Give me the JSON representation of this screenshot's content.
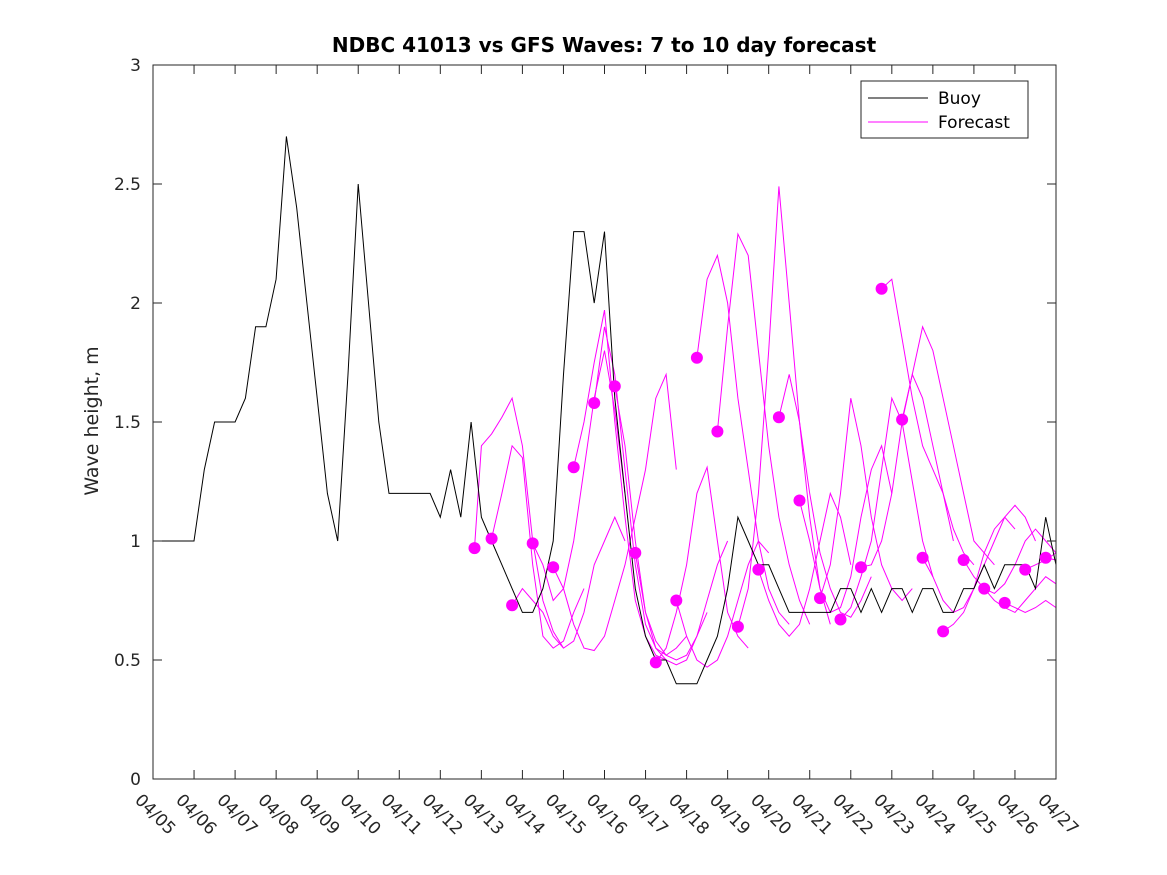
{
  "chart_data": {
    "type": "line",
    "title": "NDBC 41013 vs GFS Waves: 7 to 10 day forecast",
    "xlabel": "",
    "ylabel": "Wave height, m",
    "xlim": [
      "04/05",
      "04/27"
    ],
    "ylim": [
      0,
      3
    ],
    "grid": false,
    "legend_position": "top-right",
    "x_tick_labels": [
      "04/05",
      "04/06",
      "04/07",
      "04/08",
      "04/09",
      "04/10",
      "04/11",
      "04/12",
      "04/13",
      "04/14",
      "04/15",
      "04/16",
      "04/17",
      "04/18",
      "04/19",
      "04/20",
      "04/21",
      "04/22",
      "04/23",
      "04/24",
      "04/25",
      "04/26",
      "04/27"
    ],
    "y_ticks": [
      0,
      0.5,
      1,
      1.5,
      2,
      2.5,
      3
    ],
    "y_tick_labels": [
      "0",
      "0.5",
      "1",
      "1.5",
      "2",
      "2.5",
      "3"
    ],
    "colors": {
      "buoy": "#000000",
      "forecast": "#ff00ff"
    },
    "series": [
      {
        "name": "Buoy",
        "color": "#000000",
        "x": [
          "04/05 00:00",
          "04/05 06:00",
          "04/05 12:00",
          "04/05 18:00",
          "04/06 00:00",
          "04/06 06:00",
          "04/06 12:00",
          "04/06 18:00",
          "04/07 00:00",
          "04/07 06:00",
          "04/07 12:00",
          "04/07 18:00",
          "04/08 00:00",
          "04/08 06:00",
          "04/08 12:00",
          "04/08 18:00",
          "04/09 00:00",
          "04/09 06:00",
          "04/09 12:00",
          "04/09 18:00",
          "04/10 00:00",
          "04/10 06:00",
          "04/10 12:00",
          "04/10 18:00",
          "04/11 00:00",
          "04/11 06:00",
          "04/11 12:00",
          "04/11 18:00",
          "04/12 00:00",
          "04/12 06:00",
          "04/12 12:00",
          "04/12 18:00",
          "04/13 00:00",
          "04/13 06:00",
          "04/13 12:00",
          "04/13 18:00",
          "04/14 00:00",
          "04/14 06:00",
          "04/14 12:00",
          "04/14 18:00",
          "04/15 00:00",
          "04/15 06:00",
          "04/15 12:00",
          "04/15 18:00",
          "04/16 00:00",
          "04/16 06:00",
          "04/16 12:00",
          "04/16 18:00",
          "04/17 00:00",
          "04/17 06:00",
          "04/17 12:00",
          "04/17 18:00",
          "04/18 00:00",
          "04/18 06:00",
          "04/18 12:00",
          "04/18 18:00",
          "04/19 00:00",
          "04/19 06:00",
          "04/19 12:00",
          "04/19 18:00",
          "04/20 00:00",
          "04/20 06:00",
          "04/20 12:00",
          "04/20 18:00",
          "04/21 00:00",
          "04/21 06:00",
          "04/21 12:00",
          "04/21 18:00",
          "04/22 00:00",
          "04/22 06:00",
          "04/22 12:00",
          "04/22 18:00",
          "04/23 00:00",
          "04/23 06:00",
          "04/23 12:00",
          "04/23 18:00",
          "04/24 00:00",
          "04/24 06:00",
          "04/24 12:00",
          "04/24 18:00",
          "04/25 00:00",
          "04/25 06:00",
          "04/25 12:00",
          "04/25 18:00",
          "04/26 00:00",
          "04/26 06:00",
          "04/26 12:00",
          "04/26 18:00",
          "04/27 00:00"
        ],
        "y": [
          1.0,
          1.0,
          1.0,
          1.0,
          1.0,
          1.3,
          1.5,
          1.5,
          1.5,
          1.6,
          1.9,
          1.9,
          2.1,
          2.7,
          2.4,
          2.0,
          1.6,
          1.2,
          1.0,
          1.7,
          2.5,
          2.0,
          1.5,
          1.2,
          1.2,
          1.2,
          1.2,
          1.2,
          1.1,
          1.3,
          1.1,
          1.5,
          1.1,
          1.0,
          0.9,
          0.8,
          0.7,
          0.7,
          0.8,
          1.0,
          1.7,
          2.3,
          2.3,
          2.0,
          2.3,
          1.6,
          1.2,
          0.8,
          0.6,
          0.5,
          0.5,
          0.4,
          0.4,
          0.4,
          0.5,
          0.6,
          0.8,
          1.1,
          1.0,
          0.9,
          0.9,
          0.8,
          0.7,
          0.7,
          0.7,
          0.7,
          0.7,
          0.8,
          0.8,
          0.7,
          0.8,
          0.7,
          0.8,
          0.8,
          0.7,
          0.8,
          0.8,
          0.7,
          0.7,
          0.8,
          0.8,
          0.9,
          0.8,
          0.9,
          0.9,
          0.9,
          0.8,
          1.1,
          0.9
        ]
      }
    ],
    "forecasts": [
      {
        "name": "Forecast",
        "x": [
          "04/12 20:00",
          "04/13 00:00",
          "04/13 06:00",
          "04/13 12:00",
          "04/13 18:00",
          "04/14 00:00",
          "04/14 06:00",
          "04/14 12:00",
          "04/14 18:00",
          "04/15 00:00"
        ],
        "y": [
          0.97,
          1.4,
          1.45,
          1.52,
          1.6,
          1.4,
          1.0,
          0.75,
          0.62,
          0.55
        ]
      },
      {
        "name": "Forecast",
        "x": [
          "04/13 06:00",
          "04/13 12:00",
          "04/13 18:00",
          "04/14 00:00",
          "04/14 06:00",
          "04/14 12:00",
          "04/14 18:00",
          "04/15 00:00",
          "04/15 06:00",
          "04/15 12:00"
        ],
        "y": [
          1.01,
          1.2,
          1.4,
          1.35,
          0.9,
          0.6,
          0.55,
          0.58,
          0.7,
          0.8
        ]
      },
      {
        "name": "Forecast",
        "x": [
          "04/13 18:00",
          "04/14 00:00",
          "04/14 06:00",
          "04/14 12:00",
          "04/14 18:00",
          "04/15 00:00",
          "04/15 06:00",
          "04/15 12:00",
          "04/15 18:00",
          "04/16 00:00",
          "04/16 06:00",
          "04/16 12:00"
        ],
        "y": [
          0.73,
          0.8,
          0.75,
          0.7,
          0.6,
          0.55,
          0.58,
          0.7,
          0.9,
          1.0,
          1.1,
          1.0
        ]
      },
      {
        "name": "Forecast",
        "x": [
          "04/14 06:00",
          "04/14 12:00",
          "04/14 18:00",
          "04/15 00:00",
          "04/15 06:00",
          "04/15 12:00",
          "04/15 18:00",
          "04/16 00:00",
          "04/16 06:00",
          "04/16 12:00"
        ],
        "y": [
          0.99,
          0.9,
          0.75,
          0.8,
          1.0,
          1.3,
          1.6,
          1.8,
          1.55,
          1.2
        ]
      },
      {
        "name": "Forecast",
        "x": [
          "04/14 18:00",
          "04/15 00:00",
          "04/15 06:00",
          "04/15 12:00",
          "04/15 18:00",
          "04/16 00:00",
          "04/16 06:00",
          "04/16 12:00",
          "04/16 18:00",
          "04/17 00:00",
          "04/17 06:00",
          "04/17 12:00",
          "04/17 18:00"
        ],
        "y": [
          0.89,
          0.8,
          0.65,
          0.55,
          0.54,
          0.6,
          0.75,
          0.9,
          1.1,
          1.3,
          1.6,
          1.7,
          1.3
        ]
      },
      {
        "name": "Forecast",
        "x": [
          "04/15 06:00",
          "04/15 12:00",
          "04/15 18:00",
          "04/16 00:00",
          "04/16 06:00",
          "04/16 12:00",
          "04/16 18:00",
          "04/17 00:00",
          "04/17 06:00",
          "04/17 12:00"
        ],
        "y": [
          1.31,
          1.5,
          1.75,
          1.97,
          1.5,
          1.1,
          0.75,
          0.6,
          0.52,
          0.5
        ]
      },
      {
        "name": "Forecast",
        "x": [
          "04/15 18:00",
          "04/16 00:00",
          "04/16 06:00",
          "04/16 12:00",
          "04/16 18:00",
          "04/17 00:00",
          "04/17 06:00",
          "04/17 12:00",
          "04/17 18:00",
          "04/18 00:00"
        ],
        "y": [
          1.58,
          1.9,
          1.7,
          1.3,
          0.9,
          0.65,
          0.55,
          0.52,
          0.55,
          0.6
        ]
      },
      {
        "name": "Forecast",
        "x": [
          "04/16 06:00",
          "04/16 12:00",
          "04/16 18:00",
          "04/17 00:00",
          "04/17 06:00",
          "04/17 12:00",
          "04/17 18:00",
          "04/18 00:00",
          "04/18 06:00",
          "04/18 12:00"
        ],
        "y": [
          1.65,
          1.4,
          1.0,
          0.7,
          0.55,
          0.5,
          0.48,
          0.5,
          0.6,
          0.7
        ]
      },
      {
        "name": "Forecast",
        "x": [
          "04/16 18:00",
          "04/17 00:00",
          "04/17 06:00",
          "04/17 12:00",
          "04/17 18:00",
          "04/18 00:00",
          "04/18 06:00",
          "04/18 12:00",
          "04/18 18:00",
          "04/19 00:00"
        ],
        "y": [
          0.95,
          0.7,
          0.58,
          0.52,
          0.5,
          0.52,
          0.6,
          0.75,
          0.9,
          1.0
        ]
      },
      {
        "name": "Forecast",
        "x": [
          "04/17 06:00",
          "04/17 12:00",
          "04/17 18:00",
          "04/18 00:00",
          "04/18 06:00",
          "04/18 12:00",
          "04/18 18:00",
          "04/19 00:00",
          "04/19 06:00",
          "04/19 12:00"
        ],
        "y": [
          0.49,
          0.55,
          0.7,
          0.9,
          1.2,
          1.31,
          1.0,
          0.7,
          0.6,
          0.55
        ]
      },
      {
        "name": "Forecast",
        "x": [
          "04/17 18:00",
          "04/18 00:00",
          "04/18 06:00",
          "04/18 12:00",
          "04/18 18:00",
          "04/19 00:00",
          "04/19 06:00",
          "04/19 12:00",
          "04/19 18:00",
          "04/20 00:00"
        ],
        "y": [
          0.75,
          0.6,
          0.5,
          0.47,
          0.5,
          0.6,
          0.75,
          0.9,
          1.0,
          0.95
        ]
      },
      {
        "name": "Forecast",
        "x": [
          "04/18 06:00",
          "04/18 12:00",
          "04/18 18:00",
          "04/19 00:00",
          "04/19 06:00",
          "04/19 12:00",
          "04/19 18:00",
          "04/20 00:00",
          "04/20 06:00",
          "04/20 12:00"
        ],
        "y": [
          1.77,
          2.1,
          2.2,
          2.0,
          1.6,
          1.3,
          1.0,
          0.8,
          0.7,
          0.65
        ]
      },
      {
        "name": "Forecast",
        "x": [
          "04/18 18:00",
          "04/19 00:00",
          "04/19 06:00",
          "04/19 12:00",
          "04/19 18:00",
          "04/20 00:00",
          "04/20 06:00",
          "04/20 12:00",
          "04/20 18:00",
          "04/21 00:00"
        ],
        "y": [
          1.46,
          1.9,
          2.29,
          2.2,
          1.8,
          1.4,
          1.1,
          0.9,
          0.75,
          0.65
        ]
      },
      {
        "name": "Forecast",
        "x": [
          "04/19 06:00",
          "04/19 12:00",
          "04/19 18:00",
          "04/20 00:00",
          "04/20 06:00",
          "04/20 12:00",
          "04/20 18:00",
          "04/21 00:00",
          "04/21 06:00",
          "04/21 12:00"
        ],
        "y": [
          0.64,
          0.8,
          1.2,
          1.8,
          2.49,
          2.0,
          1.5,
          1.1,
          0.8,
          0.65
        ]
      },
      {
        "name": "Forecast",
        "x": [
          "04/19 18:00",
          "04/20 00:00",
          "04/20 06:00",
          "04/20 12:00",
          "04/20 18:00",
          "04/21 00:00",
          "04/21 06:00",
          "04/21 12:00",
          "04/21 18:00",
          "04/22 00:00"
        ],
        "y": [
          0.88,
          0.75,
          0.65,
          0.6,
          0.65,
          0.8,
          1.0,
          1.2,
          1.1,
          0.9
        ]
      },
      {
        "name": "Forecast",
        "x": [
          "04/20 06:00",
          "04/20 12:00",
          "04/20 18:00",
          "04/21 00:00",
          "04/21 06:00",
          "04/21 12:00",
          "04/21 18:00",
          "04/22 00:00",
          "04/22 06:00",
          "04/22 12:00"
        ],
        "y": [
          1.52,
          1.7,
          1.5,
          1.2,
          0.95,
          0.8,
          0.7,
          0.68,
          0.75,
          0.85
        ]
      },
      {
        "name": "Forecast",
        "x": [
          "04/20 18:00",
          "04/21 00:00",
          "04/21 06:00",
          "04/21 12:00",
          "04/21 18:00",
          "04/22 00:00",
          "04/22 06:00",
          "04/22 12:00",
          "04/22 18:00",
          "04/23 00:00"
        ],
        "y": [
          1.17,
          1.0,
          0.8,
          0.7,
          0.72,
          0.85,
          1.1,
          1.3,
          1.4,
          1.2
        ]
      },
      {
        "name": "Forecast",
        "x": [
          "04/21 06:00",
          "04/21 12:00",
          "04/21 18:00",
          "04/22 00:00",
          "04/22 06:00",
          "04/22 12:00",
          "04/22 18:00",
          "04/23 00:00",
          "04/23 06:00",
          "04/23 12:00"
        ],
        "y": [
          0.76,
          0.9,
          1.2,
          1.6,
          1.4,
          1.1,
          0.9,
          0.8,
          0.75,
          0.8
        ]
      },
      {
        "name": "Forecast",
        "x": [
          "04/21 18:00",
          "04/22 00:00",
          "04/22 06:00",
          "04/22 12:00",
          "04/22 18:00",
          "04/23 00:00",
          "04/23 06:00",
          "04/23 12:00",
          "04/23 18:00",
          "04/24 00:00"
        ],
        "y": [
          0.67,
          0.72,
          0.85,
          1.0,
          1.3,
          1.6,
          1.5,
          1.25,
          1.0,
          0.85
        ]
      },
      {
        "name": "Forecast",
        "x": [
          "04/22 06:00",
          "04/22 12:00",
          "04/22 18:00",
          "04/23 00:00",
          "04/23 06:00",
          "04/23 12:00",
          "04/23 18:00",
          "04/24 00:00",
          "04/24 06:00",
          "04/24 12:00"
        ],
        "y": [
          0.89,
          0.9,
          1.0,
          1.2,
          1.5,
          1.7,
          1.6,
          1.4,
          1.2,
          1.0
        ]
      },
      {
        "name": "Forecast",
        "x": [
          "04/22 18:00",
          "04/23 00:00",
          "04/23 06:00",
          "04/23 12:00",
          "04/23 18:00",
          "04/24 00:00",
          "04/24 06:00",
          "04/24 12:00",
          "04/24 18:00",
          "04/25 00:00"
        ],
        "y": [
          2.06,
          2.1,
          1.85,
          1.6,
          1.4,
          1.3,
          1.2,
          1.05,
          0.95,
          0.9
        ]
      },
      {
        "name": "Forecast",
        "x": [
          "04/23 06:00",
          "04/23 12:00",
          "04/23 18:00",
          "04/24 00:00",
          "04/24 06:00",
          "04/24 12:00",
          "04/24 18:00",
          "04/25 00:00",
          "04/25 06:00",
          "04/25 12:00"
        ],
        "y": [
          1.51,
          1.7,
          1.9,
          1.8,
          1.6,
          1.4,
          1.2,
          1.0,
          0.95,
          0.9
        ]
      },
      {
        "name": "Forecast",
        "x": [
          "04/23 18:00",
          "04/24 00:00",
          "04/24 06:00",
          "04/24 12:00",
          "04/24 18:00",
          "04/25 00:00",
          "04/25 06:00",
          "04/25 12:00",
          "04/25 18:00",
          "04/26 00:00"
        ],
        "y": [
          0.93,
          0.85,
          0.75,
          0.7,
          0.72,
          0.8,
          0.95,
          1.05,
          1.1,
          1.05
        ]
      },
      {
        "name": "Forecast",
        "x": [
          "04/24 06:00",
          "04/24 12:00",
          "04/24 18:00",
          "04/25 00:00",
          "04/25 06:00",
          "04/25 12:00",
          "04/25 18:00",
          "04/26 00:00",
          "04/26 06:00",
          "04/26 12:00"
        ],
        "y": [
          0.62,
          0.65,
          0.7,
          0.8,
          0.9,
          1.0,
          1.1,
          1.15,
          1.1,
          1.0
        ]
      },
      {
        "name": "Forecast",
        "x": [
          "04/24 18:00",
          "04/25 00:00",
          "04/25 06:00",
          "04/25 12:00",
          "04/25 18:00",
          "04/26 00:00",
          "04/26 06:00",
          "04/26 12:00",
          "04/26 18:00",
          "04/27 00:00"
        ],
        "y": [
          0.92,
          0.85,
          0.8,
          0.78,
          0.82,
          0.9,
          1.0,
          1.05,
          1.0,
          0.95
        ]
      },
      {
        "name": "Forecast",
        "x": [
          "04/25 06:00",
          "04/25 12:00",
          "04/25 18:00",
          "04/26 00:00",
          "04/26 06:00",
          "04/26 12:00",
          "04/26 18:00",
          "04/27 00:00"
        ],
        "y": [
          0.8,
          0.75,
          0.72,
          0.7,
          0.75,
          0.8,
          0.85,
          0.82
        ]
      },
      {
        "name": "Forecast",
        "x": [
          "04/25 18:00",
          "04/26 00:00",
          "04/26 06:00",
          "04/26 12:00",
          "04/26 18:00",
          "04/27 00:00"
        ],
        "y": [
          0.74,
          0.72,
          0.7,
          0.72,
          0.75,
          0.72
        ]
      },
      {
        "name": "Forecast",
        "x": [
          "04/26 06:00",
          "04/26 12:00",
          "04/26 18:00",
          "04/27 00:00"
        ],
        "y": [
          0.88,
          0.9,
          0.92,
          0.95
        ]
      },
      {
        "name": "Forecast",
        "x": [
          "04/26 18:00",
          "04/27 00:00"
        ],
        "y": [
          0.93,
          0.92
        ]
      }
    ],
    "legend": [
      {
        "label": "Buoy",
        "color": "#000000"
      },
      {
        "label": "Forecast",
        "color": "#ff00ff"
      }
    ]
  }
}
